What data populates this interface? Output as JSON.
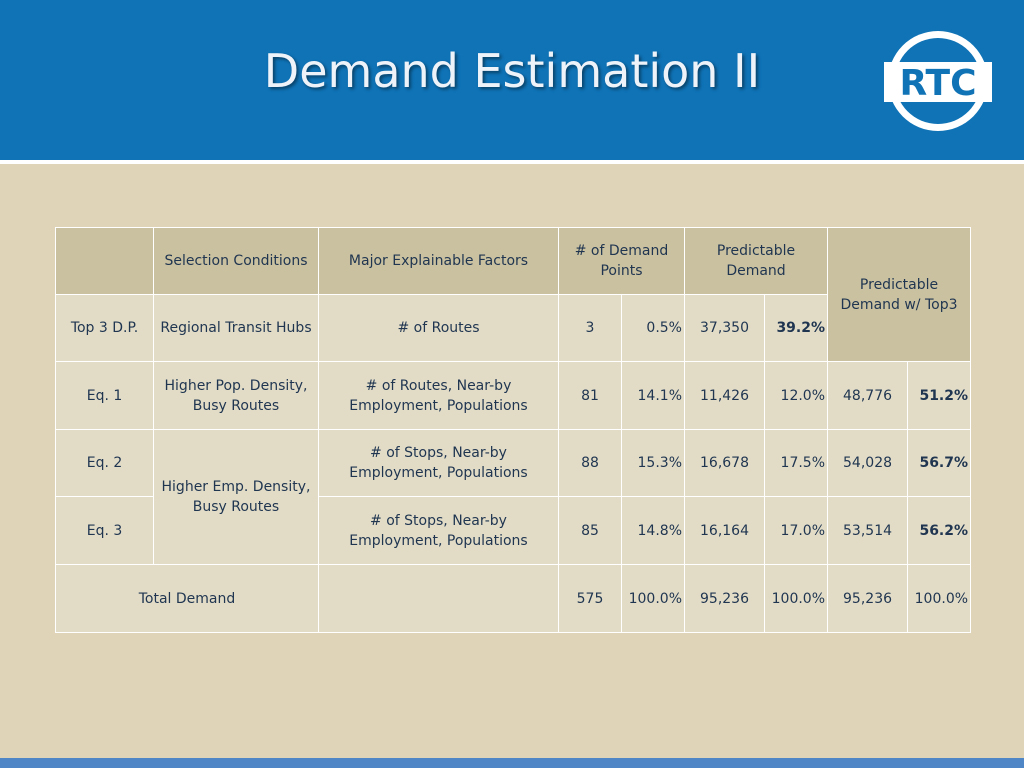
{
  "slide": {
    "title": "Demand Estimation II",
    "logo_text": "RTC",
    "colors": {
      "header": "#0f73b6",
      "background": "#e0d4b8",
      "header_cell": "#cac1a0",
      "body_cell": "#e2dcc7"
    }
  },
  "table": {
    "headers": {
      "blank": "",
      "selection_conditions": "Selection Conditions",
      "major_factors": "Major Explainable Factors",
      "demand_points": "# of Demand Points",
      "predictable_demand": "Predictable Demand",
      "predictable_demand_top3": "Predictable Demand w/ Top3"
    },
    "rows": [
      {
        "label": "Top 3 D.P.",
        "condition": "Regional Transit Hubs",
        "factors": "# of Routes",
        "points": "3",
        "points_pct": "0.5%",
        "demand": "37,350",
        "demand_pct": "39.2%"
      },
      {
        "label": "Eq. 1",
        "condition": "Higher Pop. Density, Busy Routes",
        "factors": "# of Routes, Near-by Employment, Populations",
        "points": "81",
        "points_pct": "14.1%",
        "demand": "11,426",
        "demand_pct": "12.0%",
        "top3": "48,776",
        "top3_pct": "51.2%"
      },
      {
        "label": "Eq. 2",
        "condition": "Higher Emp. Density, Busy Routes",
        "factors": "# of Stops, Near-by Employment, Populations",
        "points": "88",
        "points_pct": "15.3%",
        "demand": "16,678",
        "demand_pct": "17.5%",
        "top3": "54,028",
        "top3_pct": "56.7%"
      },
      {
        "label": "Eq. 3",
        "factors": "# of Stops, Near-by Employment, Populations",
        "points": "85",
        "points_pct": "14.8%",
        "demand": "16,164",
        "demand_pct": "17.0%",
        "top3": "53,514",
        "top3_pct": "56.2%"
      }
    ],
    "total": {
      "label": "Total Demand",
      "factors": "",
      "points": "575",
      "points_pct": "100.0%",
      "demand": "95,236",
      "demand_pct": "100.0%",
      "top3": "95,236",
      "top3_pct": "100.0%"
    }
  }
}
